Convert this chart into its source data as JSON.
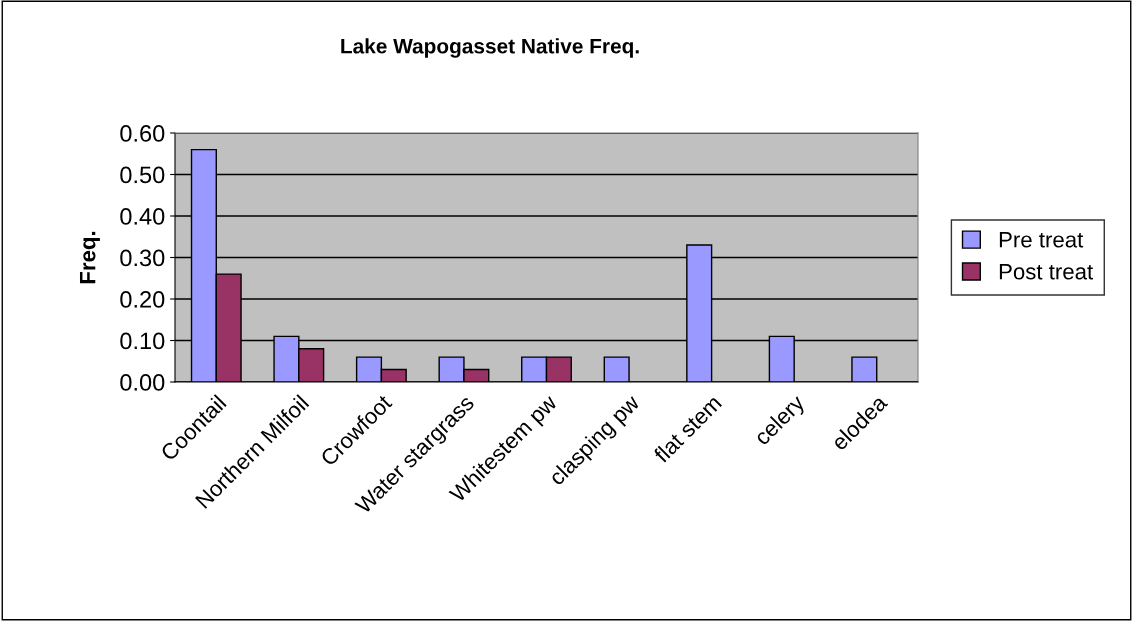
{
  "chart_data": {
    "type": "bar",
    "title": "Lake Wapogasset Native Freq.",
    "ylabel": "Freq.",
    "categories": [
      "Coontail",
      "Northern Milfoil",
      "Crowfoot",
      "Water stargrass",
      "Whitestem pw",
      "clasping pw",
      "flat stem",
      "celery",
      "elodea"
    ],
    "series": [
      {
        "name": "Pre treat",
        "color": "#9999ff",
        "values": [
          0.56,
          0.11,
          0.06,
          0.06,
          0.06,
          0.06,
          0.33,
          0.11,
          0.06
        ]
      },
      {
        "name": "Post treat",
        "color": "#993366",
        "values": [
          0.26,
          0.08,
          0.03,
          0.03,
          0.06,
          null,
          null,
          null,
          null
        ]
      }
    ],
    "ylim": [
      0,
      0.6
    ],
    "yticks": [
      {
        "value": 0,
        "label": "0.00"
      },
      {
        "value": 0.1,
        "label": "0.10"
      },
      {
        "value": 0.2,
        "label": "0.20"
      },
      {
        "value": 0.3,
        "label": "0.30"
      },
      {
        "value": 0.4,
        "label": "0.40"
      },
      {
        "value": 0.5,
        "label": "0.50"
      },
      {
        "value": 0.6,
        "label": "0.60"
      }
    ],
    "grid": "y",
    "legend": "right"
  }
}
